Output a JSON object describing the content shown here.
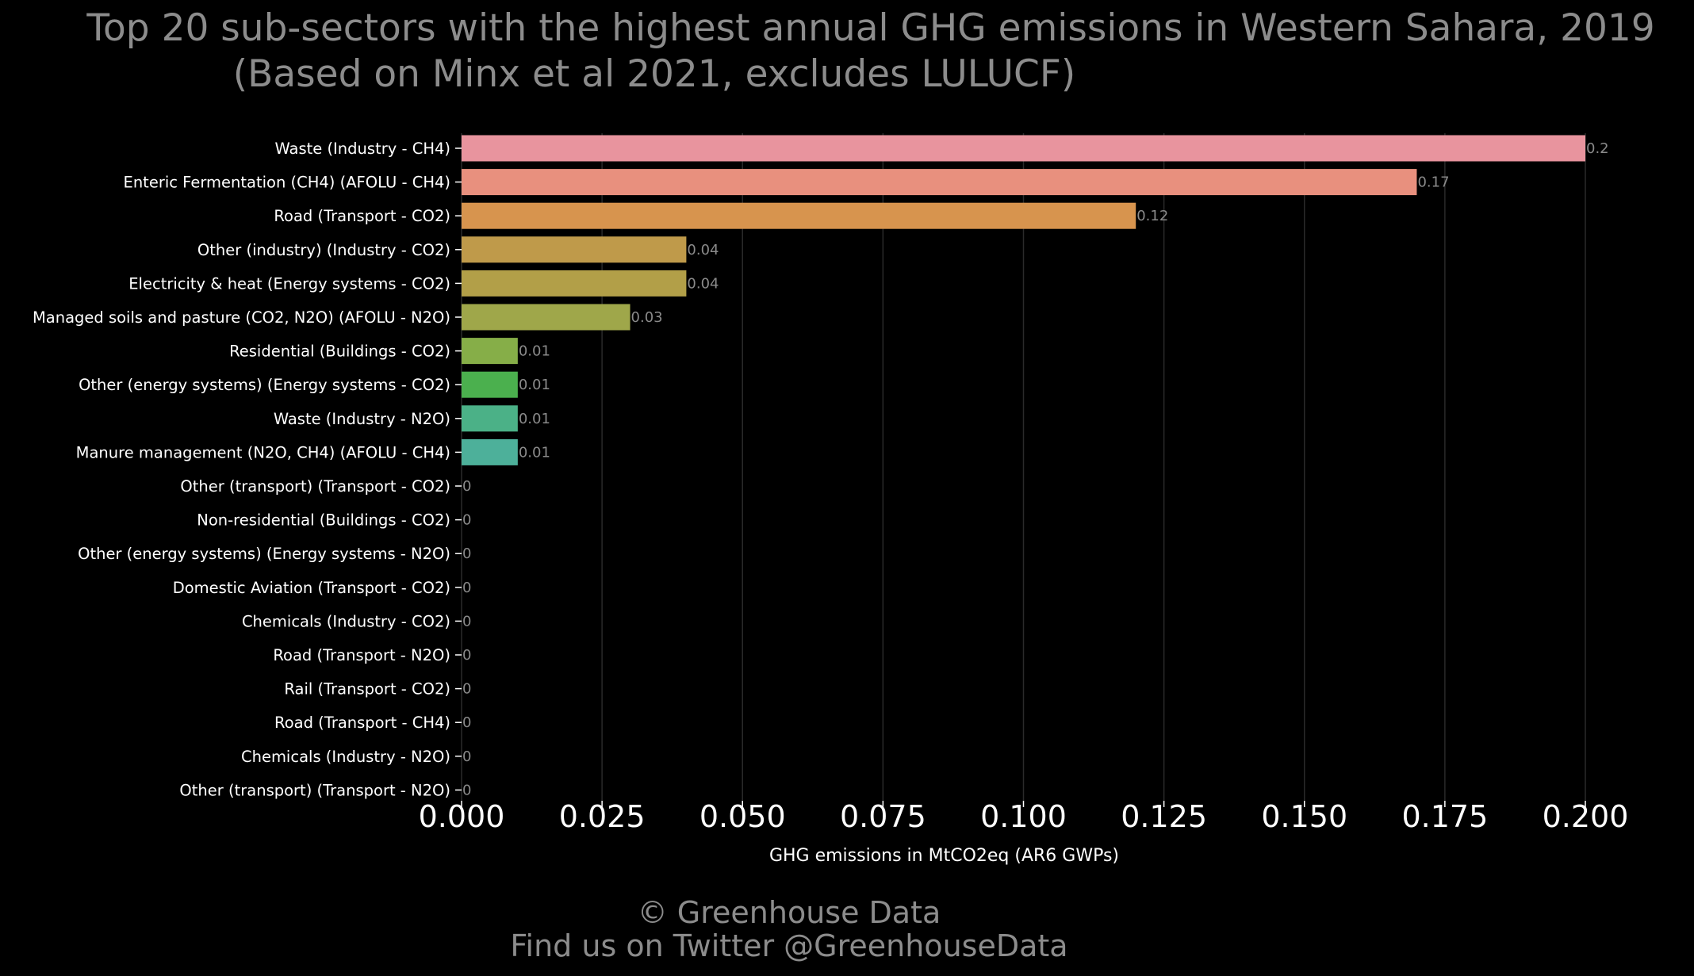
{
  "chart_data": {
    "type": "bar",
    "orientation": "horizontal",
    "title": "Top 20 sub-sectors with the highest annual GHG emissions in Western Sahara, 2019",
    "subtitle": "(Based on Minx et al 2021, excludes LULUCF)",
    "xlabel": "GHG emissions in MtCO2eq (AR6 GWPs)",
    "ylabel": "",
    "xlim": [
      0,
      0.2
    ],
    "xticks": [
      "0.000",
      "0.025",
      "0.050",
      "0.075",
      "0.100",
      "0.125",
      "0.150",
      "0.175",
      "0.200"
    ],
    "grid": "vertical",
    "categories": [
      "Waste (Industry - CH4)",
      "Enteric Fermentation (CH4) (AFOLU - CH4)",
      "Road (Transport - CO2)",
      "Other (industry) (Industry - CO2)",
      "Electricity & heat (Energy systems - CO2)",
      "Managed soils and pasture (CO2, N2O) (AFOLU - N2O)",
      "Residential (Buildings - CO2)",
      "Other (energy systems) (Energy systems - CO2)",
      "Waste (Industry - N2O)",
      "Manure management (N2O, CH4) (AFOLU - CH4)",
      "Other (transport) (Transport - CO2)",
      "Non-residential (Buildings - CO2)",
      "Other (energy systems) (Energy systems - N2O)",
      "Domestic Aviation (Transport - CO2)",
      "Chemicals (Industry - CO2)",
      "Road (Transport - N2O)",
      "Rail  (Transport - CO2)",
      "Road (Transport - CH4)",
      "Chemicals (Industry - N2O)",
      "Other (transport) (Transport - N2O)"
    ],
    "values": [
      0.2,
      0.17,
      0.12,
      0.04,
      0.04,
      0.03,
      0.01,
      0.01,
      0.01,
      0.01,
      0,
      0,
      0,
      0,
      0,
      0,
      0,
      0,
      0,
      0
    ],
    "value_labels": [
      "0.2",
      "0.17",
      "0.12",
      "0.04",
      "0.04",
      "0.03",
      "0.01",
      "0.01",
      "0.01",
      "0.01",
      "0",
      "0",
      "0",
      "0",
      "0",
      "0",
      "0",
      "0",
      "0",
      "0"
    ],
    "colors": [
      "#e8949e",
      "#e8907e",
      "#d7944e",
      "#bf9a4a",
      "#b29f48",
      "#9fa74a",
      "#86ae48",
      "#4bb04e",
      "#4bb187",
      "#4db09a",
      "#4ab0a8",
      "#4aaeb8",
      "#4aaac6",
      "#4da4d2",
      "#6a9ad8",
      "#9b92de",
      "#b98ade",
      "#d482d4",
      "#e280bf",
      "#e886a8"
    ]
  },
  "footer": {
    "line1": "© Greenhouse Data",
    "line2": "Find us on Twitter @GreenhouseData"
  },
  "colors": {
    "background": "#000000",
    "title_text": "#8c8c8c",
    "axis_text": "#ffffff",
    "value_label_text": "#8a8a8a",
    "gridline": "#2a2a2a"
  }
}
